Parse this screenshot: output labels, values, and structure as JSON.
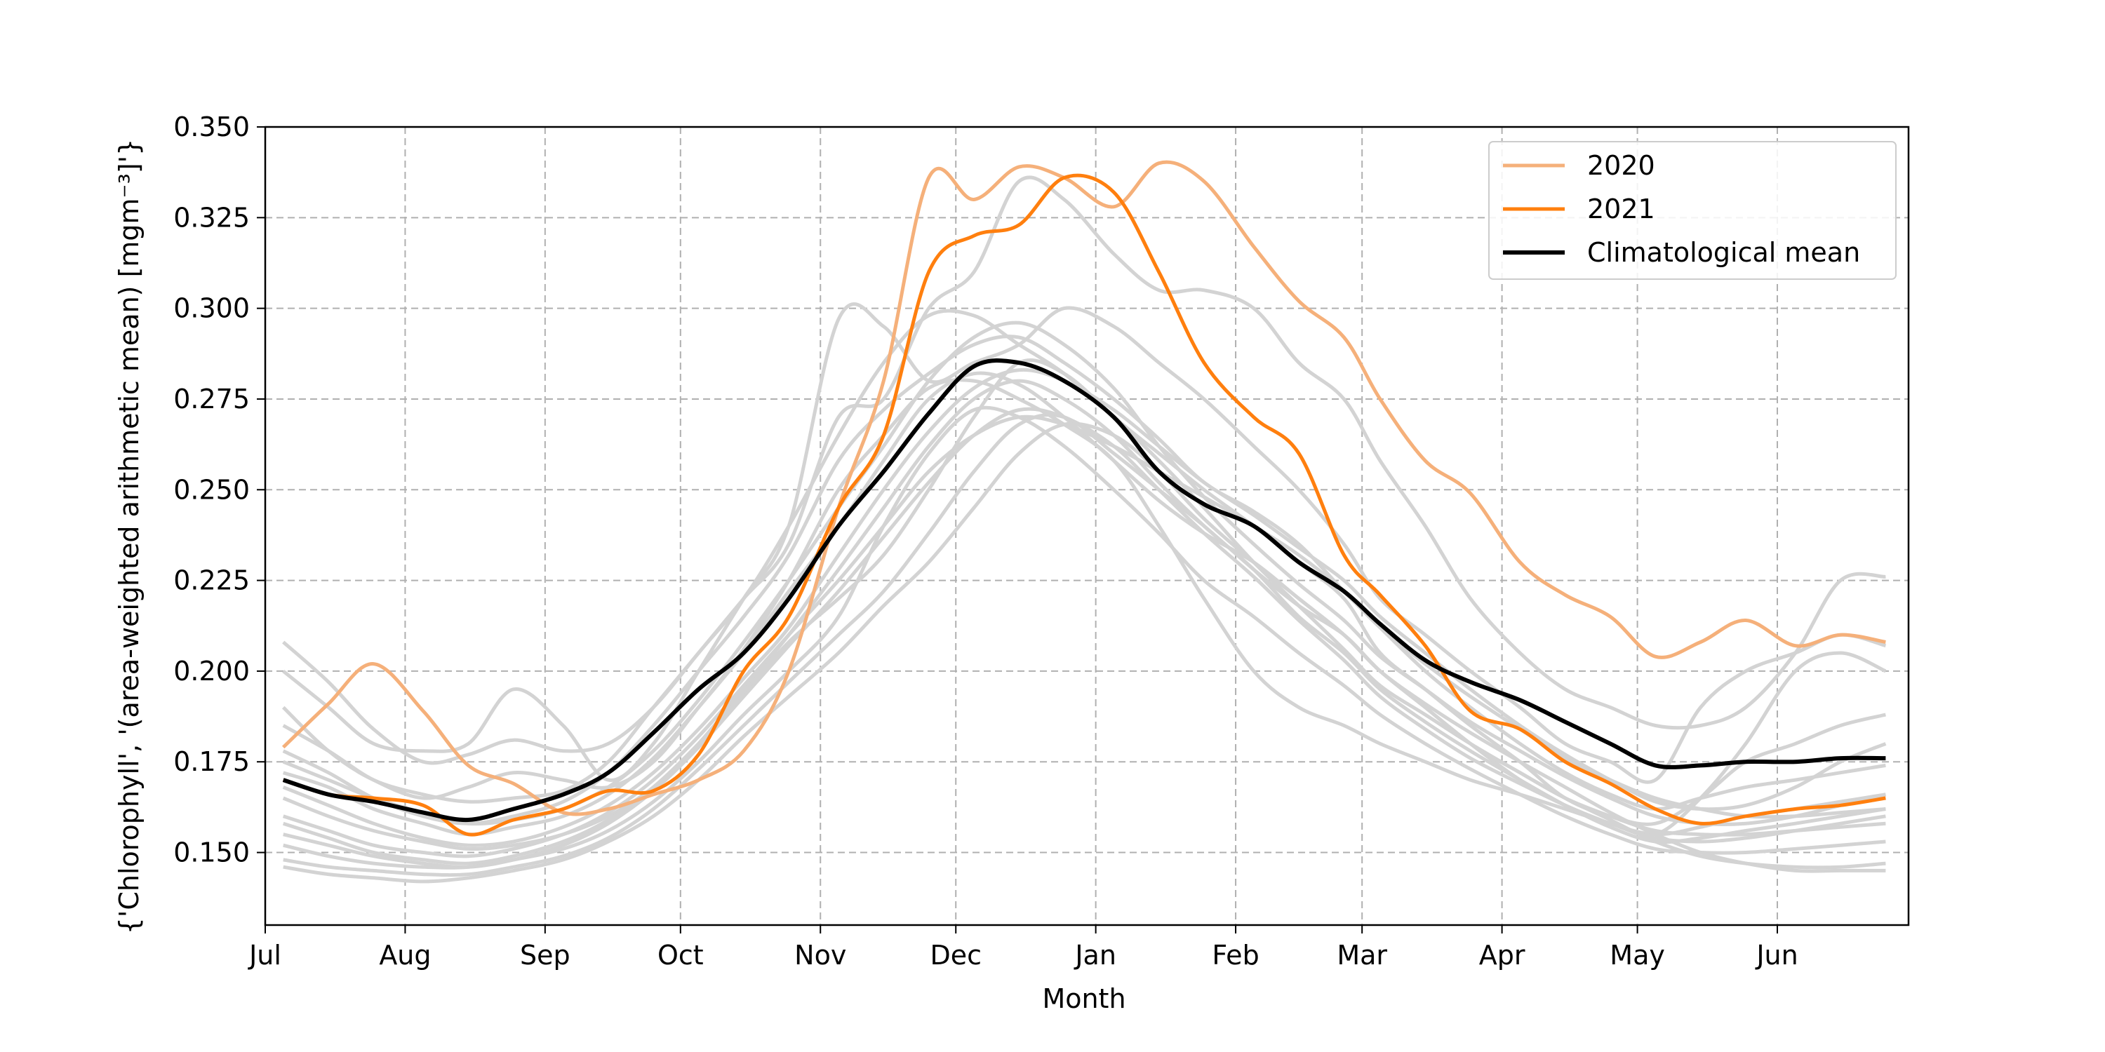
{
  "chart_data": {
    "type": "line",
    "title": "",
    "xlabel": "Month",
    "ylabel": "{'Chlorophyll', '(area-weighted arithmetic mean) [mgm⁻³]'}",
    "ylim": [
      0.13,
      0.35
    ],
    "grid": true,
    "legend_placement": "top-right",
    "x_ticks": [
      "Jul",
      "Aug",
      "Sep",
      "Oct",
      "Nov",
      "Dec",
      "Jan",
      "Feb",
      "Mar",
      "Apr",
      "May",
      "Jun"
    ],
    "y_ticks": [
      "0.150",
      "0.175",
      "0.200",
      "0.225",
      "0.250",
      "0.275",
      "0.300",
      "0.325",
      "0.350"
    ],
    "x": [
      "Jul 5",
      "Jul 15",
      "Jul 25",
      "Aug 5",
      "Aug 15",
      "Aug 25",
      "Sep 5",
      "Sep 15",
      "Sep 25",
      "Oct 5",
      "Oct 15",
      "Oct 25",
      "Nov 5",
      "Nov 15",
      "Nov 25",
      "Dec 5",
      "Dec 15",
      "Dec 25",
      "Jan 5",
      "Jan 15",
      "Jan 25",
      "Feb 5",
      "Feb 15",
      "Feb 25",
      "Mar 5",
      "Mar 15",
      "Mar 25",
      "Apr 5",
      "Apr 15",
      "Apr 25",
      "May 5",
      "May 15",
      "May 25",
      "Jun 5",
      "Jun 15",
      "Jun 25"
    ],
    "series": [
      {
        "name": "2020",
        "color": "#f5b07a",
        "values": [
          0.179,
          0.191,
          0.202,
          0.189,
          0.174,
          0.169,
          0.161,
          0.162,
          0.166,
          0.17,
          0.178,
          0.2,
          0.245,
          0.28,
          0.336,
          0.33,
          0.339,
          0.336,
          0.328,
          0.34,
          0.335,
          0.317,
          0.302,
          0.292,
          0.275,
          0.258,
          0.249,
          0.23,
          0.221,
          0.215,
          0.204,
          0.208,
          0.214,
          0.207,
          0.21,
          0.208
        ]
      },
      {
        "name": "2021",
        "color": "#ff7f0e",
        "values": [
          0.17,
          0.166,
          0.165,
          0.163,
          0.155,
          0.159,
          0.162,
          0.167,
          0.167,
          0.177,
          0.2,
          0.215,
          0.245,
          0.265,
          0.31,
          0.32,
          0.323,
          0.336,
          0.332,
          0.31,
          0.285,
          0.27,
          0.26,
          0.232,
          0.221,
          0.207,
          0.189,
          0.184,
          0.175,
          0.169,
          0.162,
          0.158,
          0.16,
          0.162,
          0.163,
          0.165
        ]
      },
      {
        "name": "Climatological mean",
        "color": "#000000",
        "values": [
          0.17,
          0.166,
          0.164,
          0.161,
          0.159,
          0.162,
          0.166,
          0.172,
          0.183,
          0.195,
          0.205,
          0.22,
          0.24,
          0.255,
          0.271,
          0.284,
          0.285,
          0.28,
          0.27,
          0.255,
          0.246,
          0.24,
          0.23,
          0.222,
          0.213,
          0.203,
          0.197,
          0.192,
          0.186,
          0.18,
          0.174,
          0.174,
          0.175,
          0.175,
          0.176,
          0.176
        ]
      }
    ],
    "background_years": [
      {
        "values": [
          0.208,
          0.197,
          0.184,
          0.175,
          0.177,
          0.181,
          0.178,
          0.18,
          0.19,
          0.205,
          0.22,
          0.235,
          0.27,
          0.275,
          0.3,
          0.31,
          0.335,
          0.33,
          0.315,
          0.305,
          0.305,
          0.3,
          0.285,
          0.275,
          0.258,
          0.24,
          0.22,
          0.205,
          0.195,
          0.19,
          0.185,
          0.185,
          0.19,
          0.205,
          0.225,
          0.226
        ]
      },
      {
        "values": [
          0.2,
          0.19,
          0.18,
          0.178,
          0.18,
          0.195,
          0.185,
          0.17,
          0.18,
          0.2,
          0.22,
          0.24,
          0.297,
          0.295,
          0.28,
          0.285,
          0.29,
          0.3,
          0.295,
          0.285,
          0.275,
          0.262,
          0.25,
          0.235,
          0.22,
          0.21,
          0.2,
          0.19,
          0.18,
          0.175,
          0.17,
          0.19,
          0.2,
          0.205,
          0.21,
          0.207
        ]
      },
      {
        "values": [
          0.19,
          0.178,
          0.17,
          0.166,
          0.164,
          0.165,
          0.167,
          0.175,
          0.19,
          0.205,
          0.22,
          0.24,
          0.265,
          0.285,
          0.298,
          0.298,
          0.29,
          0.282,
          0.27,
          0.26,
          0.25,
          0.24,
          0.23,
          0.22,
          0.205,
          0.195,
          0.185,
          0.175,
          0.165,
          0.16,
          0.158,
          0.165,
          0.175,
          0.18,
          0.185,
          0.188
        ]
      },
      {
        "values": [
          0.178,
          0.172,
          0.165,
          0.16,
          0.158,
          0.16,
          0.164,
          0.172,
          0.185,
          0.2,
          0.215,
          0.232,
          0.258,
          0.272,
          0.282,
          0.29,
          0.292,
          0.285,
          0.275,
          0.264,
          0.252,
          0.244,
          0.235,
          0.222,
          0.212,
          0.2,
          0.19,
          0.18,
          0.172,
          0.166,
          0.162,
          0.165,
          0.168,
          0.17,
          0.172,
          0.174
        ]
      },
      {
        "values": [
          0.172,
          0.168,
          0.162,
          0.158,
          0.155,
          0.157,
          0.16,
          0.166,
          0.176,
          0.19,
          0.205,
          0.222,
          0.24,
          0.258,
          0.275,
          0.282,
          0.279,
          0.27,
          0.258,
          0.247,
          0.238,
          0.23,
          0.22,
          0.21,
          0.2,
          0.19,
          0.18,
          0.17,
          0.163,
          0.158,
          0.155,
          0.157,
          0.16,
          0.162,
          0.164,
          0.166
        ]
      },
      {
        "values": [
          0.165,
          0.16,
          0.156,
          0.153,
          0.151,
          0.152,
          0.155,
          0.16,
          0.168,
          0.18,
          0.195,
          0.21,
          0.228,
          0.245,
          0.262,
          0.275,
          0.28,
          0.275,
          0.265,
          0.252,
          0.24,
          0.228,
          0.215,
          0.205,
          0.195,
          0.186,
          0.178,
          0.17,
          0.163,
          0.157,
          0.153,
          0.154,
          0.156,
          0.158,
          0.16,
          0.162
        ]
      },
      {
        "values": [
          0.158,
          0.154,
          0.15,
          0.148,
          0.147,
          0.149,
          0.153,
          0.159,
          0.168,
          0.18,
          0.194,
          0.208,
          0.22,
          0.232,
          0.25,
          0.27,
          0.285,
          0.282,
          0.27,
          0.258,
          0.245,
          0.23,
          0.218,
          0.206,
          0.196,
          0.188,
          0.18,
          0.172,
          0.165,
          0.16,
          0.156,
          0.155,
          0.155,
          0.156,
          0.157,
          0.158
        ]
      },
      {
        "values": [
          0.152,
          0.149,
          0.147,
          0.146,
          0.146,
          0.148,
          0.151,
          0.156,
          0.164,
          0.175,
          0.188,
          0.2,
          0.215,
          0.24,
          0.26,
          0.272,
          0.27,
          0.262,
          0.25,
          0.238,
          0.225,
          0.215,
          0.205,
          0.196,
          0.188,
          0.18,
          0.173,
          0.166,
          0.16,
          0.155,
          0.151,
          0.15,
          0.15,
          0.151,
          0.152,
          0.153
        ]
      },
      {
        "values": [
          0.148,
          0.146,
          0.145,
          0.144,
          0.144,
          0.146,
          0.149,
          0.154,
          0.162,
          0.173,
          0.185,
          0.197,
          0.21,
          0.222,
          0.238,
          0.255,
          0.268,
          0.27,
          0.26,
          0.25,
          0.24,
          0.228,
          0.218,
          0.21,
          0.2,
          0.19,
          0.18,
          0.172,
          0.165,
          0.159,
          0.153,
          0.149,
          0.147,
          0.146,
          0.146,
          0.147
        ]
      },
      {
        "values": [
          0.146,
          0.144,
          0.143,
          0.142,
          0.143,
          0.145,
          0.148,
          0.153,
          0.16,
          0.17,
          0.182,
          0.193,
          0.205,
          0.218,
          0.23,
          0.245,
          0.26,
          0.268,
          0.265,
          0.255,
          0.242,
          0.23,
          0.22,
          0.21,
          0.2,
          0.191,
          0.183,
          0.175,
          0.168,
          0.161,
          0.155,
          0.15,
          0.147,
          0.145,
          0.145,
          0.145
        ]
      },
      {
        "values": [
          0.185,
          0.178,
          0.17,
          0.165,
          0.168,
          0.172,
          0.17,
          0.168,
          0.175,
          0.19,
          0.206,
          0.225,
          0.25,
          0.265,
          0.278,
          0.28,
          0.275,
          0.268,
          0.258,
          0.24,
          0.22,
          0.2,
          0.19,
          0.185,
          0.18,
          0.175,
          0.17,
          0.166,
          0.162,
          0.158,
          0.155,
          0.165,
          0.18,
          0.2,
          0.205,
          0.2
        ]
      },
      {
        "values": [
          0.168,
          0.163,
          0.158,
          0.154,
          0.152,
          0.153,
          0.157,
          0.163,
          0.172,
          0.184,
          0.198,
          0.212,
          0.232,
          0.25,
          0.266,
          0.278,
          0.283,
          0.28,
          0.272,
          0.262,
          0.252,
          0.243,
          0.234,
          0.225,
          0.215,
          0.205,
          0.195,
          0.185,
          0.177,
          0.17,
          0.164,
          0.162,
          0.163,
          0.168,
          0.175,
          0.18
        ]
      },
      {
        "values": [
          0.16,
          0.156,
          0.152,
          0.15,
          0.149,
          0.151,
          0.155,
          0.161,
          0.17,
          0.182,
          0.196,
          0.21,
          0.225,
          0.24,
          0.255,
          0.265,
          0.27,
          0.268,
          0.262,
          0.255,
          0.248,
          0.24,
          0.232,
          0.222,
          0.212,
          0.202,
          0.193,
          0.184,
          0.176,
          0.17,
          0.165,
          0.162,
          0.16,
          0.16,
          0.161,
          0.162
        ]
      },
      {
        "values": [
          0.155,
          0.152,
          0.149,
          0.147,
          0.146,
          0.148,
          0.152,
          0.158,
          0.167,
          0.179,
          0.193,
          0.207,
          0.222,
          0.237,
          0.252,
          0.265,
          0.272,
          0.27,
          0.262,
          0.25,
          0.238,
          0.226,
          0.214,
          0.203,
          0.193,
          0.184,
          0.176,
          0.169,
          0.163,
          0.158,
          0.154,
          0.153,
          0.154,
          0.156,
          0.158,
          0.16
        ]
      },
      {
        "values": [
          0.175,
          0.17,
          0.165,
          0.161,
          0.158,
          0.159,
          0.162,
          0.168,
          0.178,
          0.192,
          0.208,
          0.225,
          0.245,
          0.262,
          0.28,
          0.292,
          0.296,
          0.29,
          0.278,
          0.262,
          0.248,
          0.235,
          0.224,
          0.214,
          0.204,
          0.195,
          0.186,
          0.178,
          0.171,
          0.165,
          0.16,
          0.158,
          0.158,
          0.16,
          0.163,
          0.166
        ]
      }
    ]
  }
}
